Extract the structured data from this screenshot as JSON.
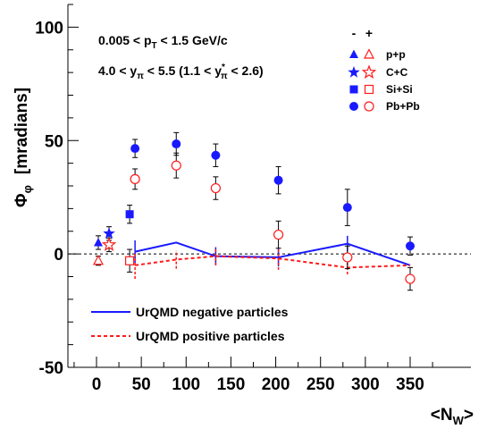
{
  "chart_data": {
    "type": "scatter",
    "ylabel_main": "Φ",
    "ylabel_sub": "φ",
    "ylabel_unit": "[mradians]",
    "xlabel_main": "<N",
    "xlabel_sub": "W",
    "xlabel_end": ">",
    "xlim": [
      -30,
      380
    ],
    "ylim": [
      -50,
      110
    ],
    "x_ticks": [
      0,
      50,
      100,
      150,
      200,
      250,
      300,
      350
    ],
    "y_ticks": [
      -50,
      0,
      50,
      100
    ],
    "zero_line": true,
    "annotations": {
      "line1": {
        "a": "0.005 < p",
        "b": "T",
        "c": " < 1.5 GeV/c"
      },
      "line2": {
        "a": "4.0 < y",
        "b": "π",
        "c": " < 5.5   (1.1 < y",
        "d": "*",
        "e": "π",
        "f": " < 2.6)"
      }
    },
    "legend": {
      "header_minus": "-",
      "header_plus": "+",
      "entries": [
        {
          "label": "p+p",
          "marker": "triangle"
        },
        {
          "label": "C+C",
          "marker": "star"
        },
        {
          "label": "Si+Si",
          "marker": "square"
        },
        {
          "label": "Pb+Pb",
          "marker": "circle"
        }
      ],
      "lines": [
        {
          "label": "UrQMD negative particles",
          "color": "#1a1aff",
          "dashed": false
        },
        {
          "label": "UrQMD positive particles",
          "color": "#ff1a1a",
          "dashed": true
        }
      ]
    },
    "colors": {
      "negative": "#1a1aff",
      "positive": "#ff1a1a",
      "axis": "#000000"
    },
    "series": [
      {
        "name": "p+p",
        "charge": "negative",
        "marker": "triangle",
        "filled": true,
        "points": [
          {
            "x": 2,
            "y": 5,
            "err": 3
          }
        ]
      },
      {
        "name": "p+p",
        "charge": "positive",
        "marker": "triangle",
        "filled": false,
        "points": [
          {
            "x": 2,
            "y": -3,
            "err": 2
          }
        ]
      },
      {
        "name": "C+C",
        "charge": "negative",
        "marker": "star",
        "filled": true,
        "points": [
          {
            "x": 14,
            "y": 9,
            "err": 3
          }
        ]
      },
      {
        "name": "C+C",
        "charge": "positive",
        "marker": "star",
        "filled": false,
        "points": [
          {
            "x": 14,
            "y": 4,
            "err": 3
          }
        ]
      },
      {
        "name": "Si+Si",
        "charge": "negative",
        "marker": "square",
        "filled": true,
        "points": [
          {
            "x": 37,
            "y": 17.5,
            "err": 4
          }
        ]
      },
      {
        "name": "Si+Si",
        "charge": "positive",
        "marker": "square",
        "filled": false,
        "points": [
          {
            "x": 37,
            "y": -3,
            "err": 5
          }
        ]
      },
      {
        "name": "Pb+Pb",
        "charge": "negative",
        "marker": "circle",
        "filled": true,
        "points": [
          {
            "x": 43,
            "y": 46.5,
            "err": 4
          },
          {
            "x": 89,
            "y": 48.5,
            "err": 5
          },
          {
            "x": 133,
            "y": 43.5,
            "err": 5
          },
          {
            "x": 203,
            "y": 32.5,
            "err": 6
          },
          {
            "x": 280,
            "y": 20.5,
            "err": 8
          },
          {
            "x": 350,
            "y": 3.5,
            "err": 4
          }
        ]
      },
      {
        "name": "Pb+Pb",
        "charge": "positive",
        "marker": "circle",
        "filled": false,
        "points": [
          {
            "x": 43,
            "y": 33,
            "err": 4.5
          },
          {
            "x": 89,
            "y": 39,
            "err": 5.5
          },
          {
            "x": 133,
            "y": 29,
            "err": 5
          },
          {
            "x": 203,
            "y": 8.5,
            "err": 6
          },
          {
            "x": 280,
            "y": -1.5,
            "err": 5
          },
          {
            "x": 350,
            "y": -11,
            "err": 5
          }
        ]
      }
    ],
    "urqmd": [
      {
        "name": "UrQMD negative particles",
        "charge": "negative",
        "dashed": false,
        "points": [
          {
            "x": 43,
            "y": 1,
            "err": 5
          },
          {
            "x": 89,
            "y": 5,
            "err": 0
          },
          {
            "x": 133,
            "y": -1,
            "err": 4
          },
          {
            "x": 203,
            "y": -1.5,
            "err": 4
          },
          {
            "x": 280,
            "y": 4.5,
            "err": 3.5
          },
          {
            "x": 350,
            "y": -5,
            "err": 0
          }
        ]
      },
      {
        "name": "UrQMD positive particles",
        "charge": "positive",
        "dashed": true,
        "points": [
          {
            "x": 43,
            "y": -5,
            "err": 6
          },
          {
            "x": 89,
            "y": -2.5,
            "err": 4
          },
          {
            "x": 133,
            "y": -1,
            "err": 4
          },
          {
            "x": 203,
            "y": -2,
            "err": 5
          },
          {
            "x": 280,
            "y": -6,
            "err": 3
          },
          {
            "x": 350,
            "y": -5,
            "err": 0
          }
        ]
      }
    ]
  }
}
